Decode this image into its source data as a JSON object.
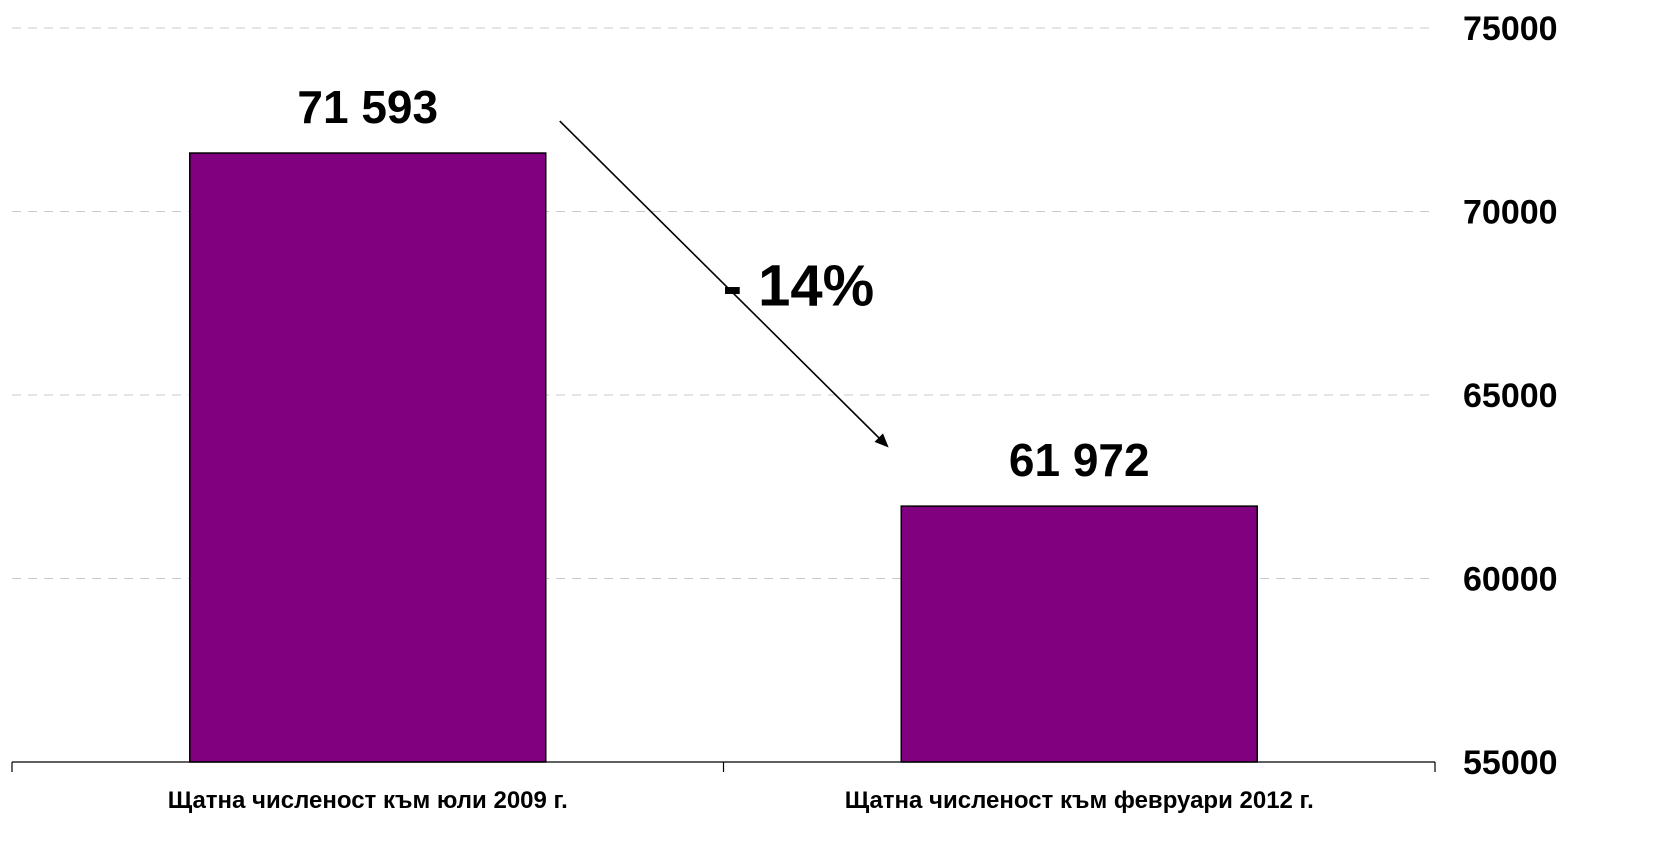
{
  "chart_data": {
    "type": "bar",
    "categories": [
      "Щатна численост към юли 2009 г.",
      "Щатна численост към февруари 2012 г."
    ],
    "values": [
      71593,
      61972
    ],
    "value_labels": [
      "71 593",
      "61 972"
    ],
    "title": "",
    "xlabel": "",
    "ylabel": "",
    "ylim": [
      55000,
      75000
    ],
    "yticks": [
      55000,
      60000,
      65000,
      70000,
      75000
    ],
    "yaxis_side": "right",
    "grid": true,
    "bar_color": "#800080",
    "annotation": {
      "text": "- 14%",
      "type": "arrow",
      "from_category": 0,
      "to_category": 1
    }
  }
}
